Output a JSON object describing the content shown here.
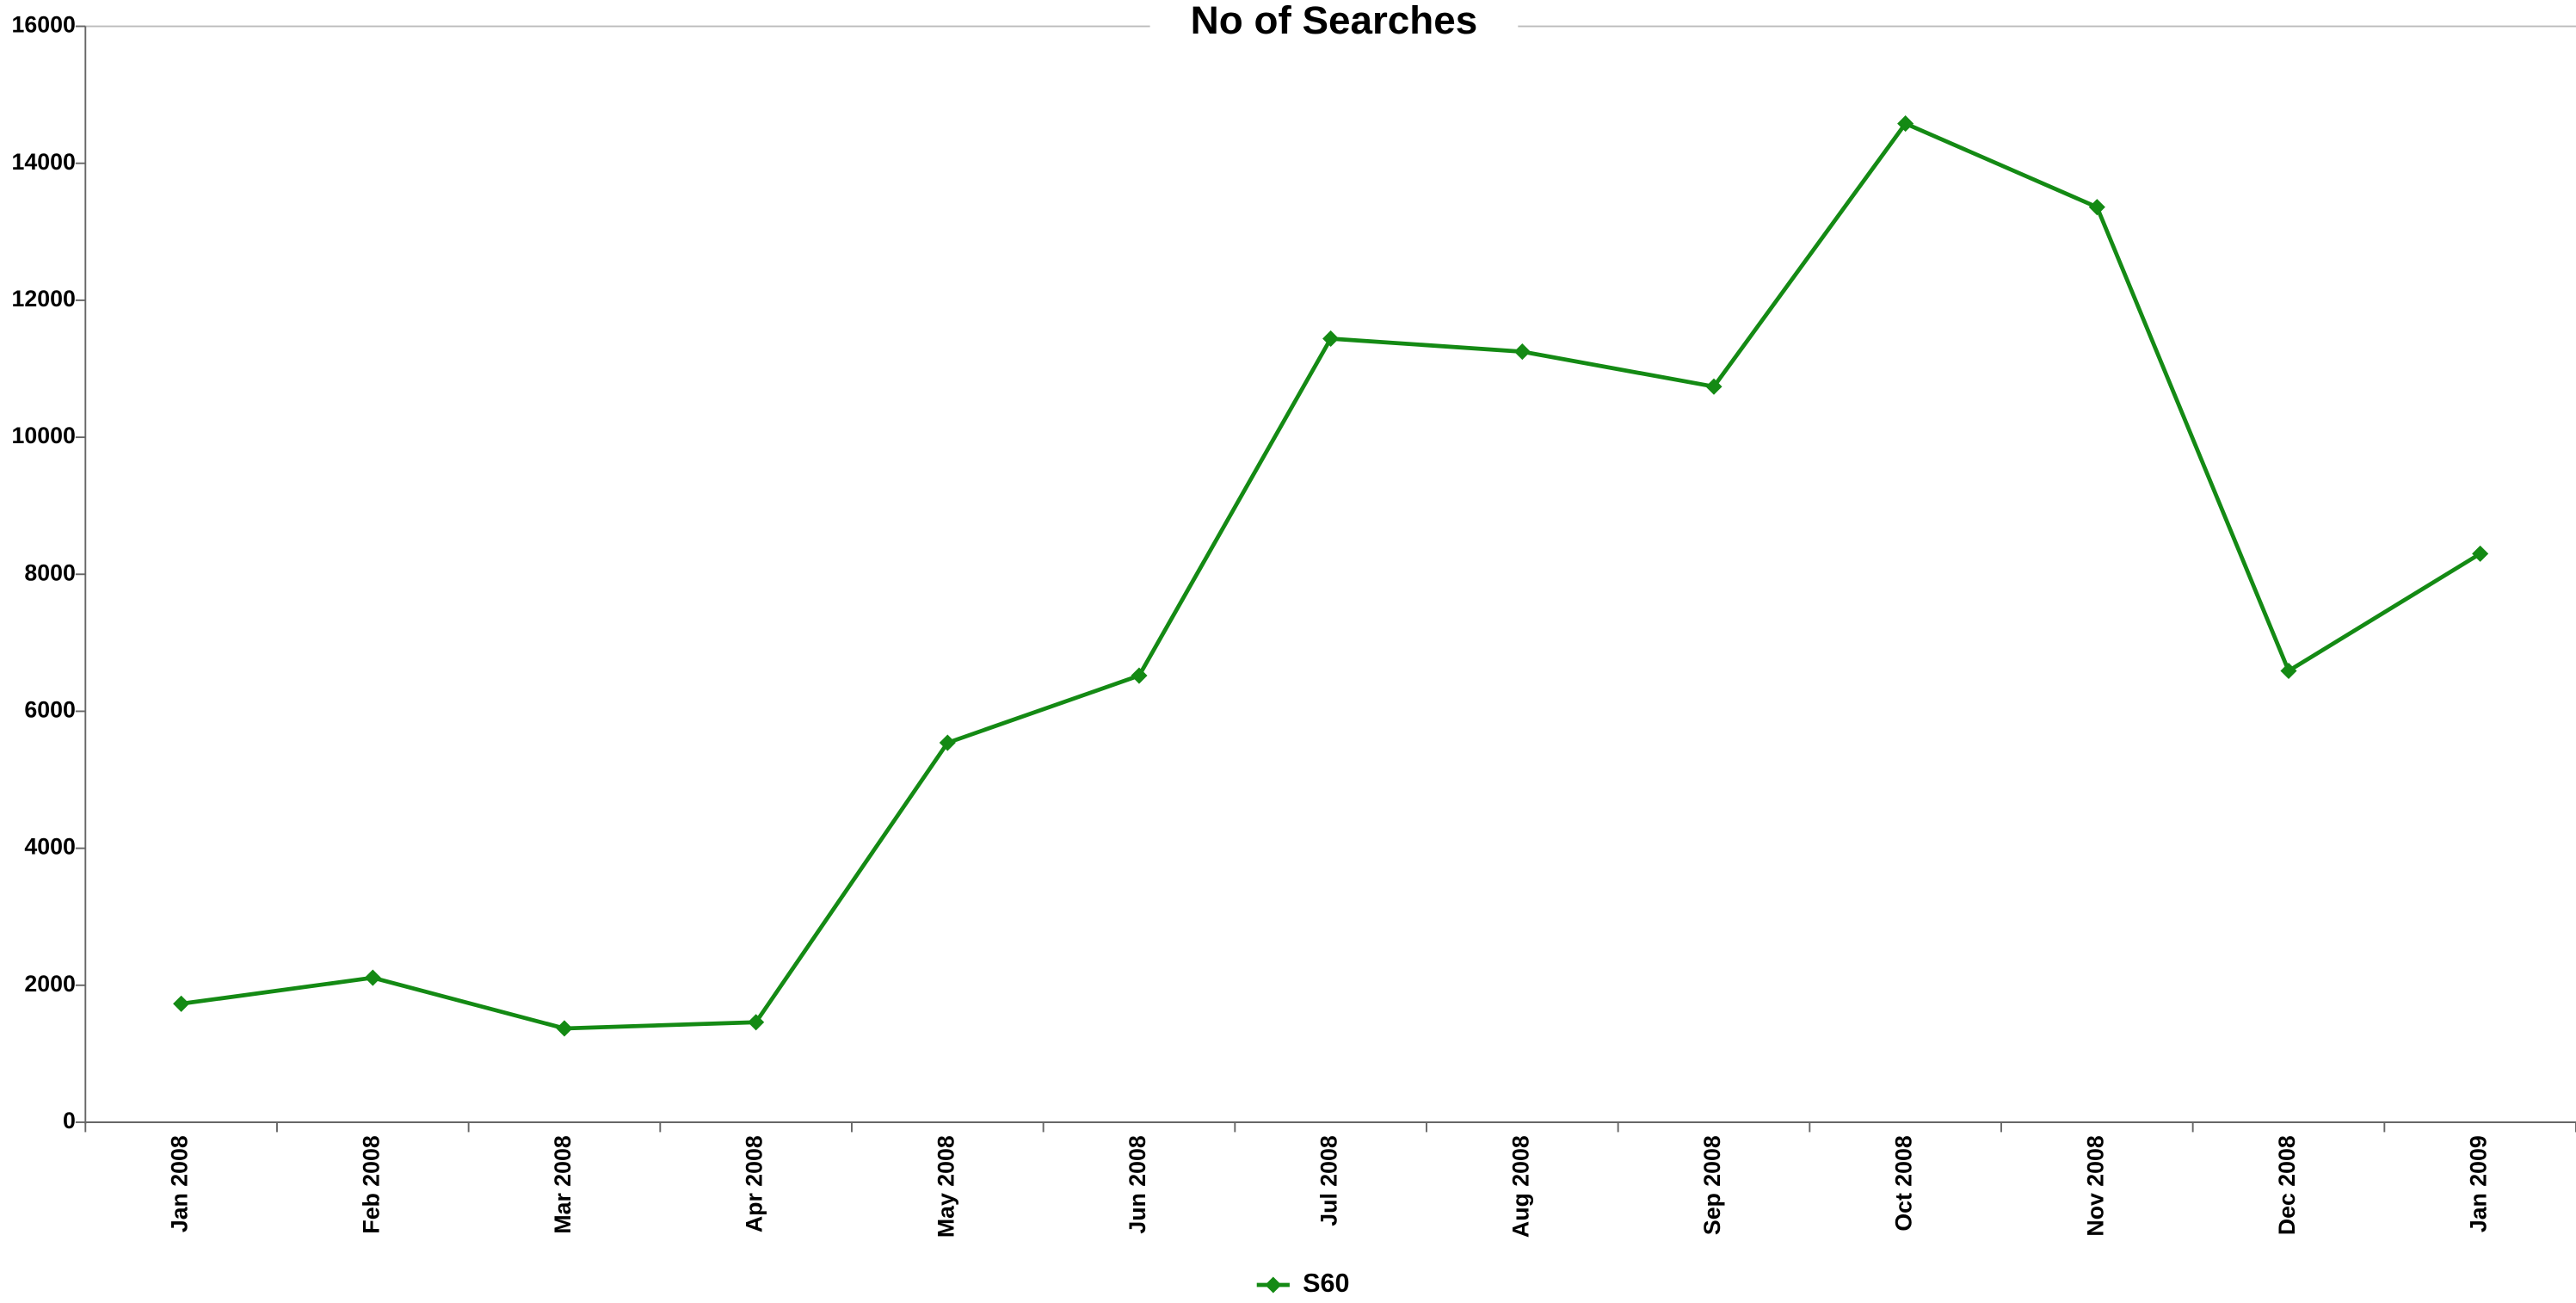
{
  "chart_data": {
    "type": "line",
    "title": "No of Searches",
    "categories": [
      "Jan 2008",
      "Feb 2008",
      "Mar 2008",
      "Apr 2008",
      "May 2008",
      "Jun 2008",
      "Jul 2008",
      "Aug 2008",
      "Sep 2008",
      "Oct 2008",
      "Nov 2008",
      "Dec 2008",
      "Jan 2009"
    ],
    "series": [
      {
        "name": "S60",
        "color": "#148a14",
        "values": [
          1730,
          2110,
          1370,
          1460,
          5540,
          6520,
          11440,
          11250,
          10740,
          14580,
          13360,
          6590,
          8300
        ]
      }
    ],
    "ylim": [
      0,
      16000
    ],
    "yticks": [
      0,
      2000,
      4000,
      6000,
      8000,
      10000,
      12000,
      14000,
      16000
    ],
    "grid": false,
    "legend": "bottom"
  }
}
